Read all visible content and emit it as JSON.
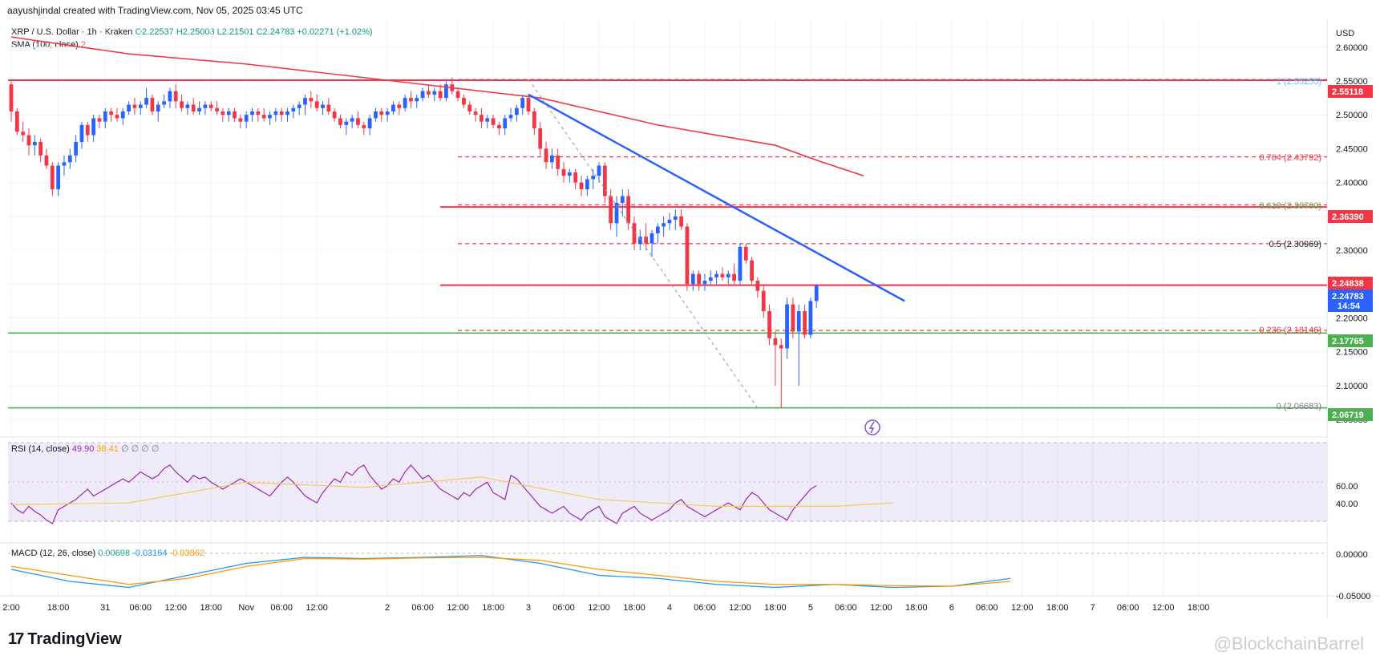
{
  "header": {
    "credit": "aayushjindal created with TradingView.com, Nov 05, 2025 03:45 UTC"
  },
  "legend": {
    "symbol": "XRP / U.S. Dollar · 1h · Kraken",
    "open": "O2.22537",
    "high": "H2.25003",
    "low": "L2.21501",
    "close": "C2.24783",
    "change": "+0.02271 (+1.02%)",
    "sma_label": "SMA (100, close)",
    "sma_value": "2"
  },
  "axis": {
    "currency": "USD"
  },
  "colors": {
    "up": "#2962ff",
    "down": "#f23645",
    "sma": "#f23645",
    "trend": "#2962ff",
    "support": "#4caf50",
    "rsi": "#9c27b0",
    "rsi_ma": "#f7c85a",
    "macd": "#2196f3",
    "signal": "#ff9800"
  },
  "price_labels": {
    "r1": "2.55118",
    "r2": "2.36390",
    "r3": "2.24838",
    "last": "2.24783",
    "countdown": "14:54",
    "s1": "2.17765",
    "s2": "2.06719"
  },
  "fib_labels": {
    "f1": "1 (2.55255)",
    "f764": "0.764 (2.43792)",
    "f618": "0.618 (2.36700)",
    "f5": "0.5 (2.30969)",
    "f236": "0.236 (2.18146)",
    "f0": "0 (2.06683)"
  },
  "rsi": {
    "label": "RSI (14, close)",
    "value": "49.90",
    "ma": "38.41",
    "nulls": "∅ ∅ ∅ ∅",
    "ticks": [
      "60.00",
      "40.00"
    ]
  },
  "macd": {
    "label": "MACD (12, 26, close)",
    "hist": "0.00698",
    "macd": "-0.03164",
    "signal": "-0.03862",
    "ticks": [
      "0.00000",
      "-0.05000"
    ]
  },
  "footer": {
    "brand": "TradingView",
    "watermark": "@BlockchainBarrel"
  },
  "chart_data": {
    "type": "candlestick",
    "title": "XRP / U.S. Dollar · 1h · Kraken",
    "ylabel": "USD",
    "ylim": [
      2.03,
      2.64
    ],
    "price_ticks": [
      "2.60000",
      "2.55000",
      "2.50000",
      "2.45000",
      "2.40000",
      "2.35000",
      "2.30000",
      "2.25000",
      "2.20000",
      "2.15000",
      "2.10000",
      "2.05000"
    ],
    "time_ticks": [
      {
        "label": "2:00",
        "i": 0
      },
      {
        "label": "18:00",
        "i": 8
      },
      {
        "label": "31",
        "i": 16
      },
      {
        "label": "06:00",
        "i": 22
      },
      {
        "label": "12:00",
        "i": 28
      },
      {
        "label": "18:00",
        "i": 34
      },
      {
        "label": "Nov",
        "i": 40
      },
      {
        "label": "06:00",
        "i": 46
      },
      {
        "label": "12:00",
        "i": 52
      },
      {
        "label": "2",
        "i": 64
      },
      {
        "label": "06:00",
        "i": 70
      },
      {
        "label": "12:00",
        "i": 76
      },
      {
        "label": "18:00",
        "i": 82
      },
      {
        "label": "3",
        "i": 88
      },
      {
        "label": "06:00",
        "i": 94
      },
      {
        "label": "12:00",
        "i": 100
      },
      {
        "label": "18:00",
        "i": 106
      },
      {
        "label": "4",
        "i": 112
      },
      {
        "label": "06:00",
        "i": 118
      },
      {
        "label": "12:00",
        "i": 124
      },
      {
        "label": "18:00",
        "i": 130
      },
      {
        "label": "5",
        "i": 136
      },
      {
        "label": "06:00",
        "i": 142
      },
      {
        "label": "12:00",
        "i": 148
      },
      {
        "label": "18:00",
        "i": 154
      },
      {
        "label": "6",
        "i": 160
      },
      {
        "label": "06:00",
        "i": 166
      },
      {
        "label": "12:00",
        "i": 172
      },
      {
        "label": "18:00",
        "i": 178
      },
      {
        "label": "7",
        "i": 184
      },
      {
        "label": "06:00",
        "i": 190
      },
      {
        "label": "12:00",
        "i": 196
      },
      {
        "label": "18:00",
        "i": 202
      }
    ],
    "candles": [
      [
        2.545,
        2.552,
        2.49,
        2.505
      ],
      [
        2.505,
        2.51,
        2.47,
        2.475
      ],
      [
        2.475,
        2.49,
        2.46,
        2.47
      ],
      [
        2.47,
        2.48,
        2.44,
        2.455
      ],
      [
        2.455,
        2.47,
        2.44,
        2.46
      ],
      [
        2.46,
        2.465,
        2.43,
        2.44
      ],
      [
        2.44,
        2.45,
        2.42,
        2.425
      ],
      [
        2.425,
        2.43,
        2.38,
        2.39
      ],
      [
        2.39,
        2.43,
        2.38,
        2.425
      ],
      [
        2.425,
        2.44,
        2.41,
        2.43
      ],
      [
        2.43,
        2.45,
        2.42,
        2.44
      ],
      [
        2.44,
        2.47,
        2.43,
        2.46
      ],
      [
        2.46,
        2.49,
        2.45,
        2.485
      ],
      [
        2.485,
        2.49,
        2.46,
        2.47
      ],
      [
        2.47,
        2.5,
        2.46,
        2.495
      ],
      [
        2.495,
        2.5,
        2.48,
        2.49
      ],
      [
        2.49,
        2.51,
        2.48,
        2.505
      ],
      [
        2.505,
        2.51,
        2.49,
        2.5
      ],
      [
        2.5,
        2.51,
        2.49,
        2.495
      ],
      [
        2.495,
        2.51,
        2.485,
        2.505
      ],
      [
        2.505,
        2.52,
        2.5,
        2.515
      ],
      [
        2.515,
        2.525,
        2.5,
        2.51
      ],
      [
        2.51,
        2.52,
        2.5,
        2.515
      ],
      [
        2.515,
        2.54,
        2.51,
        2.525
      ],
      [
        2.525,
        2.53,
        2.5,
        2.505
      ],
      [
        2.505,
        2.52,
        2.49,
        2.515
      ],
      [
        2.515,
        2.53,
        2.51,
        2.52
      ],
      [
        2.52,
        2.54,
        2.51,
        2.535
      ],
      [
        2.535,
        2.545,
        2.51,
        2.52
      ],
      [
        2.52,
        2.53,
        2.505,
        2.51
      ],
      [
        2.51,
        2.52,
        2.5,
        2.515
      ],
      [
        2.515,
        2.525,
        2.5,
        2.505
      ],
      [
        2.505,
        2.52,
        2.5,
        2.51
      ],
      [
        2.51,
        2.52,
        2.5,
        2.515
      ],
      [
        2.515,
        2.52,
        2.505,
        2.51
      ],
      [
        2.51,
        2.52,
        2.5,
        2.505
      ],
      [
        2.505,
        2.51,
        2.49,
        2.5
      ],
      [
        2.5,
        2.51,
        2.49,
        2.505
      ],
      [
        2.505,
        2.51,
        2.49,
        2.495
      ],
      [
        2.495,
        2.5,
        2.48,
        2.49
      ],
      [
        2.49,
        2.505,
        2.48,
        2.5
      ],
      [
        2.5,
        2.51,
        2.49,
        2.505
      ],
      [
        2.505,
        2.51,
        2.49,
        2.5
      ],
      [
        2.5,
        2.51,
        2.49,
        2.495
      ],
      [
        2.495,
        2.505,
        2.485,
        2.5
      ],
      [
        2.5,
        2.51,
        2.49,
        2.505
      ],
      [
        2.505,
        2.51,
        2.49,
        2.5
      ],
      [
        2.5,
        2.51,
        2.49,
        2.505
      ],
      [
        2.505,
        2.515,
        2.495,
        2.51
      ],
      [
        2.51,
        2.52,
        2.5,
        2.515
      ],
      [
        2.515,
        2.53,
        2.5,
        2.525
      ],
      [
        2.525,
        2.535,
        2.51,
        2.52
      ],
      [
        2.52,
        2.53,
        2.505,
        2.51
      ],
      [
        2.51,
        2.52,
        2.5,
        2.515
      ],
      [
        2.515,
        2.525,
        2.5,
        2.505
      ],
      [
        2.505,
        2.51,
        2.49,
        2.495
      ],
      [
        2.495,
        2.5,
        2.48,
        2.485
      ],
      [
        2.485,
        2.495,
        2.47,
        2.49
      ],
      [
        2.49,
        2.5,
        2.48,
        2.495
      ],
      [
        2.495,
        2.505,
        2.48,
        2.485
      ],
      [
        2.485,
        2.49,
        2.47,
        2.48
      ],
      [
        2.48,
        2.5,
        2.47,
        2.495
      ],
      [
        2.495,
        2.51,
        2.49,
        2.505
      ],
      [
        2.505,
        2.51,
        2.49,
        2.5
      ],
      [
        2.5,
        2.51,
        2.49,
        2.505
      ],
      [
        2.505,
        2.52,
        2.5,
        2.515
      ],
      [
        2.515,
        2.52,
        2.5,
        2.51
      ],
      [
        2.51,
        2.53,
        2.505,
        2.525
      ],
      [
        2.525,
        2.535,
        2.51,
        2.52
      ],
      [
        2.52,
        2.53,
        2.51,
        2.525
      ],
      [
        2.525,
        2.54,
        2.52,
        2.535
      ],
      [
        2.535,
        2.545,
        2.525,
        2.53
      ],
      [
        2.53,
        2.54,
        2.52,
        2.535
      ],
      [
        2.535,
        2.545,
        2.52,
        2.525
      ],
      [
        2.525,
        2.55,
        2.52,
        2.545
      ],
      [
        2.545,
        2.555,
        2.53,
        2.535
      ],
      [
        2.535,
        2.54,
        2.52,
        2.525
      ],
      [
        2.525,
        2.53,
        2.51,
        2.515
      ],
      [
        2.515,
        2.52,
        2.5,
        2.505
      ],
      [
        2.505,
        2.51,
        2.49,
        2.5
      ],
      [
        2.5,
        2.51,
        2.48,
        2.49
      ],
      [
        2.49,
        2.5,
        2.48,
        2.495
      ],
      [
        2.495,
        2.5,
        2.48,
        2.485
      ],
      [
        2.485,
        2.49,
        2.47,
        2.48
      ],
      [
        2.48,
        2.5,
        2.47,
        2.495
      ],
      [
        2.495,
        2.51,
        2.49,
        2.5
      ],
      [
        2.5,
        2.515,
        2.49,
        2.51
      ],
      [
        2.51,
        2.53,
        2.5,
        2.525
      ],
      [
        2.525,
        2.53,
        2.5,
        2.505
      ],
      [
        2.505,
        2.51,
        2.47,
        2.48
      ],
      [
        2.48,
        2.49,
        2.44,
        2.45
      ],
      [
        2.45,
        2.46,
        2.42,
        2.43
      ],
      [
        2.43,
        2.45,
        2.42,
        2.44
      ],
      [
        2.44,
        2.45,
        2.41,
        2.42
      ],
      [
        2.42,
        2.43,
        2.4,
        2.41
      ],
      [
        2.41,
        2.42,
        2.4,
        2.415
      ],
      [
        2.415,
        2.42,
        2.39,
        2.4
      ],
      [
        2.4,
        2.41,
        2.38,
        2.39
      ],
      [
        2.39,
        2.41,
        2.38,
        2.405
      ],
      [
        2.405,
        2.42,
        2.39,
        2.41
      ],
      [
        2.41,
        2.43,
        2.4,
        2.425
      ],
      [
        2.425,
        2.43,
        2.37,
        2.38
      ],
      [
        2.38,
        2.39,
        2.33,
        2.34
      ],
      [
        2.34,
        2.38,
        2.32,
        2.37
      ],
      [
        2.37,
        2.39,
        2.35,
        2.38
      ],
      [
        2.38,
        2.39,
        2.33,
        2.34
      ],
      [
        2.34,
        2.35,
        2.3,
        2.31
      ],
      [
        2.31,
        2.33,
        2.3,
        2.32
      ],
      [
        2.32,
        2.34,
        2.3,
        2.31
      ],
      [
        2.31,
        2.33,
        2.29,
        2.325
      ],
      [
        2.325,
        2.34,
        2.31,
        2.335
      ],
      [
        2.335,
        2.35,
        2.32,
        2.34
      ],
      [
        2.34,
        2.355,
        2.33,
        2.345
      ],
      [
        2.345,
        2.36,
        2.33,
        2.35
      ],
      [
        2.35,
        2.36,
        2.33,
        2.335
      ],
      [
        2.335,
        2.34,
        2.24,
        2.25
      ],
      [
        2.25,
        2.27,
        2.24,
        2.265
      ],
      [
        2.265,
        2.27,
        2.24,
        2.25
      ],
      [
        2.25,
        2.265,
        2.24,
        2.255
      ],
      [
        2.255,
        2.27,
        2.25,
        2.26
      ],
      [
        2.26,
        2.27,
        2.25,
        2.265
      ],
      [
        2.265,
        2.275,
        2.255,
        2.26
      ],
      [
        2.26,
        2.27,
        2.25,
        2.265
      ],
      [
        2.265,
        2.28,
        2.25,
        2.255
      ],
      [
        2.255,
        2.31,
        2.25,
        2.305
      ],
      [
        2.305,
        2.31,
        2.28,
        2.285
      ],
      [
        2.285,
        2.29,
        2.25,
        2.255
      ],
      [
        2.255,
        2.26,
        2.23,
        2.24
      ],
      [
        2.24,
        2.25,
        2.2,
        2.21
      ],
      [
        2.21,
        2.22,
        2.16,
        2.17
      ],
      [
        2.17,
        2.18,
        2.1,
        2.16
      ],
      [
        2.16,
        2.17,
        2.067,
        2.155
      ],
      [
        2.155,
        2.23,
        2.14,
        2.22
      ],
      [
        2.22,
        2.23,
        2.17,
        2.18
      ],
      [
        2.18,
        2.22,
        2.1,
        2.21
      ],
      [
        2.21,
        2.22,
        2.17,
        2.175
      ],
      [
        2.175,
        2.23,
        2.17,
        2.225
      ],
      [
        2.225,
        2.25,
        2.215,
        2.2478
      ]
    ],
    "sma": [
      [
        0,
        2.615
      ],
      [
        20,
        2.59
      ],
      [
        40,
        2.575
      ],
      [
        60,
        2.555
      ],
      [
        80,
        2.535
      ],
      [
        90,
        2.525
      ],
      [
        100,
        2.505
      ],
      [
        110,
        2.485
      ],
      [
        120,
        2.47
      ],
      [
        130,
        2.455
      ],
      [
        138,
        2.43
      ],
      [
        145,
        2.41
      ]
    ],
    "trendline": {
      "from": [
        88,
        2.53
      ],
      "to": [
        152,
        2.225
      ]
    },
    "levels": {
      "resistance": [
        2.55118,
        2.3639,
        2.24838
      ],
      "support": [
        2.17765,
        2.06719
      ],
      "fib": [
        {
          "ratio": "1",
          "value": 2.55255
        },
        {
          "ratio": "0.764",
          "value": 2.43792
        },
        {
          "ratio": "0.618",
          "value": 2.367
        },
        {
          "ratio": "0.5",
          "value": 2.30969
        },
        {
          "ratio": "0.236",
          "value": 2.18146
        },
        {
          "ratio": "0",
          "value": 2.06683
        }
      ]
    },
    "rsi_ylim": [
      20,
      75
    ],
    "rsi_values": [
      40,
      36,
      34,
      38,
      35,
      33,
      30,
      28,
      36,
      38,
      40,
      42,
      45,
      48,
      44,
      46,
      48,
      50,
      52,
      54,
      52,
      55,
      58,
      56,
      54,
      56,
      60,
      62,
      58,
      55,
      52,
      56,
      54,
      55,
      52,
      50,
      48,
      50,
      52,
      54,
      52,
      50,
      48,
      46,
      44,
      48,
      52,
      55,
      52,
      48,
      44,
      42,
      40,
      46,
      50,
      54,
      52,
      58,
      56,
      60,
      62,
      56,
      52,
      48,
      50,
      54,
      52,
      58,
      62,
      58,
      54,
      56,
      52,
      48,
      46,
      44,
      42,
      46,
      44,
      48,
      50,
      52,
      46,
      44,
      42,
      56,
      54,
      50,
      46,
      42,
      38,
      36,
      34,
      36,
      38,
      34,
      32,
      30,
      34,
      36,
      38,
      32,
      30,
      28,
      34,
      36,
      38,
      34,
      32,
      30,
      32,
      34,
      36,
      40,
      42,
      38,
      36,
      34,
      32,
      34,
      36,
      38,
      40,
      38,
      36,
      42,
      46,
      44,
      40,
      36,
      34,
      32,
      30,
      36,
      40,
      44,
      48,
      50
    ],
    "rsi_ma_values": [
      [
        0,
        39
      ],
      [
        20,
        40
      ],
      [
        40,
        52
      ],
      [
        60,
        49
      ],
      [
        80,
        55
      ],
      [
        100,
        42
      ],
      [
        120,
        38
      ],
      [
        140,
        38
      ],
      [
        150,
        40
      ]
    ],
    "macd_ylim": [
      -0.06,
      0.02
    ],
    "macd_values": [
      [
        0,
        -0.02
      ],
      [
        10,
        -0.04
      ],
      [
        20,
        -0.05
      ],
      [
        30,
        -0.03
      ],
      [
        40,
        -0.01
      ],
      [
        50,
        0.0
      ],
      [
        60,
        -0.002
      ],
      [
        70,
        0.0
      ],
      [
        80,
        0.003
      ],
      [
        90,
        -0.01
      ],
      [
        100,
        -0.03
      ],
      [
        110,
        -0.035
      ],
      [
        120,
        -0.045
      ],
      [
        130,
        -0.05
      ],
      [
        140,
        -0.045
      ],
      [
        150,
        -0.05
      ],
      [
        160,
        -0.048
      ],
      [
        170,
        -0.035
      ]
    ],
    "signal_values": [
      [
        0,
        -0.015
      ],
      [
        10,
        -0.03
      ],
      [
        20,
        -0.045
      ],
      [
        30,
        -0.035
      ],
      [
        40,
        -0.015
      ],
      [
        50,
        -0.002
      ],
      [
        60,
        -0.003
      ],
      [
        70,
        -0.001
      ],
      [
        80,
        0.0
      ],
      [
        90,
        -0.005
      ],
      [
        100,
        -0.02
      ],
      [
        110,
        -0.03
      ],
      [
        120,
        -0.04
      ],
      [
        130,
        -0.045
      ],
      [
        140,
        -0.045
      ],
      [
        150,
        -0.047
      ],
      [
        160,
        -0.048
      ],
      [
        170,
        -0.04
      ]
    ]
  }
}
